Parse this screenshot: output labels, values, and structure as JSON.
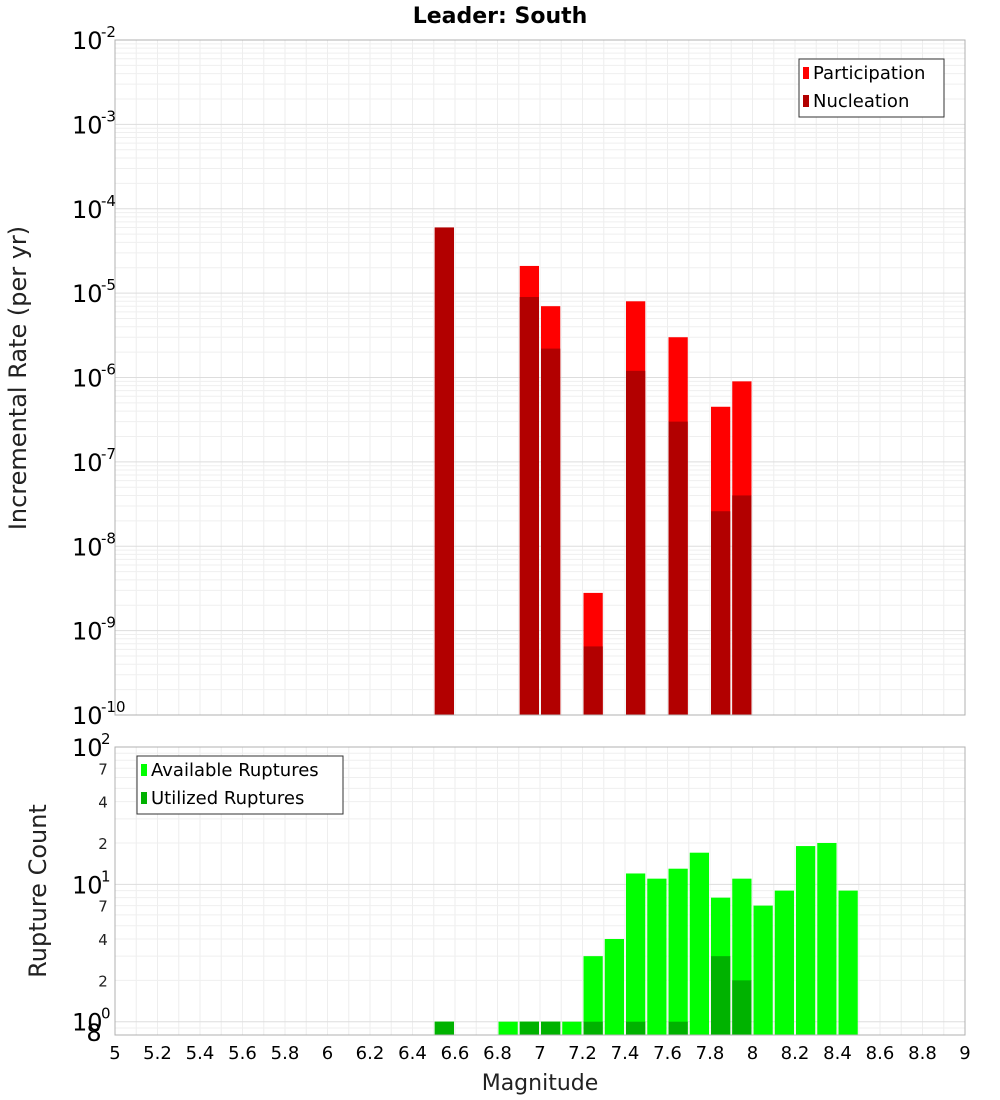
{
  "chart_data": [
    {
      "type": "bar",
      "title": "Leader: South",
      "xlabel": "",
      "ylabel": "Incremental Rate (per yr)",
      "yscale": "log",
      "ylim": [
        1e-10,
        0.01
      ],
      "xlim": [
        5,
        9
      ],
      "bar_width": 0.1,
      "grid": true,
      "legend_position": "top-right",
      "y_tick_decades": [
        -10,
        -9,
        -8,
        -7,
        -6,
        -5,
        -4,
        -3,
        -2
      ],
      "series": [
        {
          "name": "Participation",
          "color": "#ff0000",
          "x": [
            6.55,
            6.95,
            7.05,
            7.25,
            7.45,
            7.65,
            7.85,
            7.95
          ],
          "values": [
            6e-05,
            2.1e-05,
            7e-06,
            2.8e-09,
            8e-06,
            3e-06,
            4.5e-07,
            9e-07
          ]
        },
        {
          "name": "Nucleation",
          "color": "#b20000",
          "x": [
            6.55,
            6.95,
            7.05,
            7.25,
            7.45,
            7.65,
            7.85,
            7.95
          ],
          "values": [
            6e-05,
            9e-06,
            2.2e-06,
            6.5e-10,
            1.2e-06,
            3e-07,
            2.6e-08,
            4e-08
          ]
        }
      ]
    },
    {
      "type": "bar",
      "title": "",
      "xlabel": "Magnitude",
      "ylabel": "Rupture Count",
      "yscale": "log",
      "ylim": [
        0.8,
        100
      ],
      "xlim": [
        5,
        9
      ],
      "bar_width": 0.1,
      "grid": true,
      "legend_position": "top-left",
      "x_ticks": [
        "5",
        "5.2",
        "5.4",
        "5.6",
        "5.8",
        "6",
        "6.2",
        "6.4",
        "6.6",
        "6.8",
        "7",
        "7.2",
        "7.4",
        "7.6",
        "7.8",
        "8",
        "8.2",
        "8.4",
        "8.6",
        "8.8",
        "9"
      ],
      "y_tick_decades": [
        0,
        1,
        2
      ],
      "y_minor_labels": [
        "8",
        "2",
        "4",
        "7",
        "2",
        "4",
        "7"
      ],
      "series": [
        {
          "name": "Available Ruptures",
          "color": "#00ff00",
          "x": [
            6.55,
            6.85,
            6.95,
            7.05,
            7.15,
            7.25,
            7.35,
            7.45,
            7.55,
            7.65,
            7.75,
            7.85,
            7.95,
            8.05,
            8.15,
            8.25,
            8.35,
            8.45
          ],
          "values": [
            1,
            1,
            1,
            1,
            1,
            3,
            4,
            12,
            11,
            13,
            17,
            8,
            11,
            7,
            9,
            19,
            20,
            9
          ]
        },
        {
          "name": "Utilized Ruptures",
          "color": "#00b200",
          "x": [
            6.55,
            6.95,
            7.05,
            7.25,
            7.45,
            7.65,
            7.85,
            7.95
          ],
          "values": [
            1,
            1,
            1,
            1,
            1,
            1,
            3,
            2
          ]
        }
      ]
    }
  ]
}
